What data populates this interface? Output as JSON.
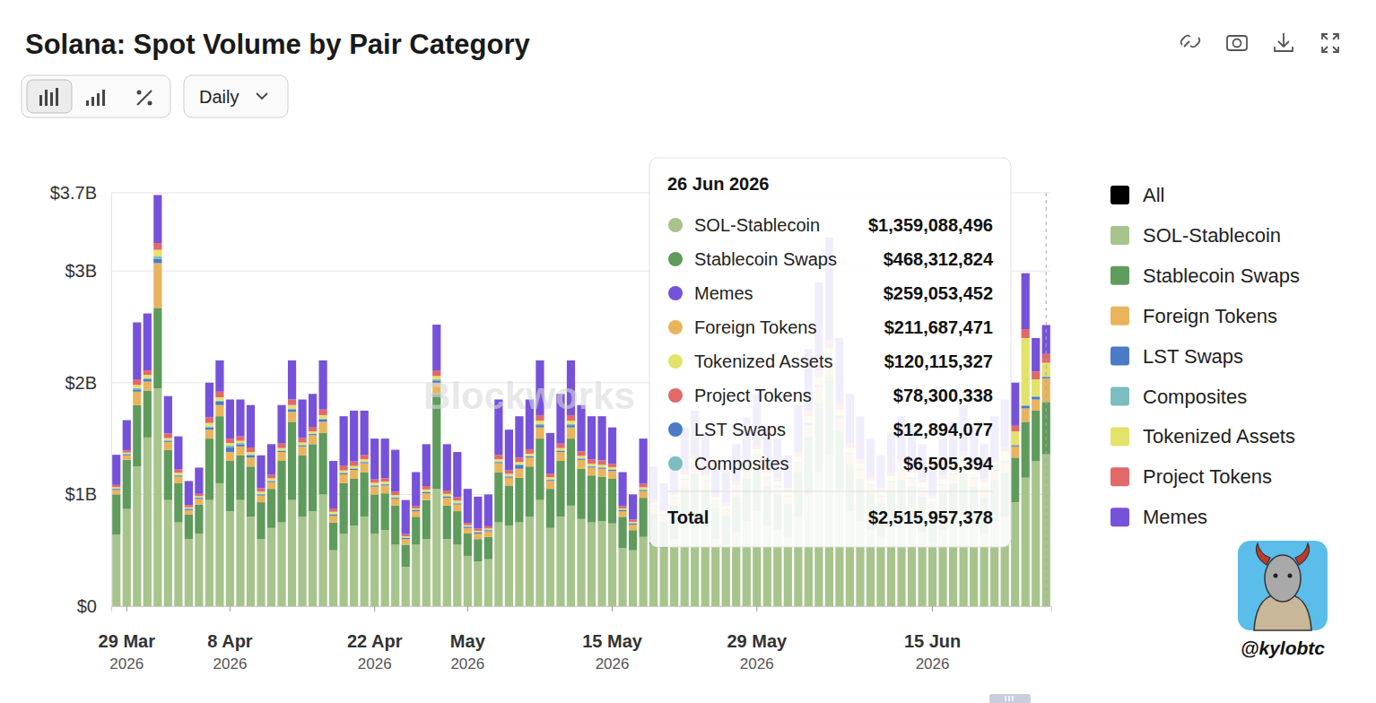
{
  "chart_data": {
    "type": "bar",
    "title": "Solana: Spot Volume by Pair Category",
    "interval": "Daily",
    "watermark": "Blockworks",
    "credit": "@kylobtc",
    "stacked": true,
    "grid": true,
    "legend": "right",
    "all_label": "All",
    "ylim": [
      0,
      3.7
    ],
    "yticks": [
      {
        "value": 0,
        "label": "$0"
      },
      {
        "value": 1,
        "label": "$1B"
      },
      {
        "value": 2,
        "label": "$2B"
      },
      {
        "value": 3,
        "label": "$3B"
      },
      {
        "value": 3.7,
        "label": "$3.7B"
      }
    ],
    "categories": [
      null,
      "29 Mar\n2026",
      null,
      null,
      null,
      null,
      null,
      null,
      null,
      null,
      null,
      "8 Apr\n2026",
      null,
      null,
      null,
      null,
      null,
      null,
      null,
      null,
      null,
      null,
      null,
      null,
      null,
      "22 Apr\n2026",
      null,
      null,
      null,
      null,
      null,
      null,
      null,
      null,
      "May\n2026",
      null,
      null,
      null,
      null,
      null,
      null,
      null,
      null,
      null,
      null,
      null,
      null,
      null,
      "15 May\n2026",
      null,
      null,
      null,
      null,
      null,
      null,
      null,
      null,
      null,
      null,
      null,
      null,
      null,
      "29 May\n2026",
      null,
      null,
      null,
      null,
      null,
      null,
      null,
      null,
      null,
      null,
      null,
      null,
      null,
      null,
      null,
      null,
      "15 Jun\n2026",
      null,
      null,
      null,
      null,
      null,
      null,
      null,
      null,
      null,
      null,
      null
    ],
    "series": [
      {
        "name": "SOL-Stablecoin",
        "color": "#a7c48c",
        "values": [
          0.64,
          0.87,
          1.25,
          1.51,
          1.95,
          0.95,
          0.75,
          0.6,
          0.65,
          0.95,
          1.1,
          0.85,
          0.95,
          0.8,
          0.6,
          0.7,
          0.75,
          0.95,
          0.8,
          0.85,
          1.0,
          0.5,
          0.65,
          0.72,
          0.8,
          0.65,
          0.68,
          0.55,
          0.35,
          0.55,
          0.6,
          1.05,
          0.6,
          0.55,
          0.45,
          0.4,
          0.42,
          0.75,
          0.72,
          0.75,
          0.8,
          0.95,
          0.7,
          0.8,
          0.9,
          0.78,
          0.75,
          0.76,
          0.74,
          0.52,
          0.5,
          0.62,
          0.55,
          0.52,
          0.6,
          0.7,
          0.78,
          0.7,
          0.6,
          0.55,
          0.66,
          0.76,
          0.85,
          0.72,
          0.68,
          0.62,
          0.8,
          1.0,
          1.2,
          1.35,
          1.05,
          0.85,
          0.76,
          0.68,
          0.62,
          0.7,
          0.76,
          0.72,
          0.66,
          0.58,
          0.68,
          0.74,
          0.8,
          0.72,
          0.65,
          0.76,
          0.8,
          0.93,
          1.15,
          1.3,
          1.359088496
        ]
      },
      {
        "name": "Stablecoin Swaps",
        "color": "#5f9b5c",
        "values": [
          0.36,
          0.44,
          0.55,
          0.42,
          0.72,
          0.45,
          0.35,
          0.22,
          0.26,
          0.55,
          0.6,
          0.45,
          0.4,
          0.45,
          0.33,
          0.35,
          0.55,
          0.7,
          0.55,
          0.6,
          0.55,
          0.25,
          0.45,
          0.42,
          0.4,
          0.35,
          0.33,
          0.35,
          0.2,
          0.25,
          0.35,
          0.85,
          0.3,
          0.3,
          0.2,
          0.2,
          0.2,
          0.45,
          0.36,
          0.4,
          0.45,
          0.55,
          0.35,
          0.5,
          0.6,
          0.45,
          0.42,
          0.4,
          0.4,
          0.28,
          0.18,
          0.35,
          0.28,
          0.24,
          0.3,
          0.36,
          0.4,
          0.35,
          0.28,
          0.26,
          0.32,
          0.38,
          0.42,
          0.36,
          0.33,
          0.3,
          0.4,
          0.52,
          0.62,
          0.7,
          0.52,
          0.42,
          0.38,
          0.33,
          0.3,
          0.34,
          0.37,
          0.35,
          0.32,
          0.28,
          0.33,
          0.36,
          0.39,
          0.35,
          0.32,
          0.37,
          0.4,
          0.4,
          0.5,
          0.45,
          0.468312824
        ]
      },
      {
        "name": "Foreign Tokens",
        "color": "#eab45c",
        "values": [
          0.04,
          0.04,
          0.12,
          0.08,
          0.4,
          0.07,
          0.06,
          0.04,
          0.05,
          0.08,
          0.1,
          0.08,
          0.08,
          0.08,
          0.06,
          0.06,
          0.08,
          0.09,
          0.08,
          0.08,
          0.1,
          0.06,
          0.08,
          0.08,
          0.08,
          0.07,
          0.07,
          0.06,
          0.05,
          0.05,
          0.06,
          0.1,
          0.07,
          0.06,
          0.05,
          0.05,
          0.05,
          0.08,
          0.07,
          0.08,
          0.08,
          0.1,
          0.07,
          0.08,
          0.1,
          0.08,
          0.07,
          0.07,
          0.07,
          0.05,
          0.05,
          0.06,
          0.06,
          0.05,
          0.06,
          0.07,
          0.08,
          0.07,
          0.06,
          0.05,
          0.06,
          0.07,
          0.08,
          0.07,
          0.06,
          0.06,
          0.08,
          0.1,
          0.14,
          0.15,
          0.11,
          0.09,
          0.08,
          0.07,
          0.06,
          0.07,
          0.08,
          0.07,
          0.07,
          0.06,
          0.07,
          0.08,
          0.08,
          0.07,
          0.07,
          0.08,
          0.09,
          0.1,
          0.12,
          0.1,
          0.211687471
        ]
      },
      {
        "name": "LST Swaps",
        "color": "#4b7bc6",
        "values": [
          0.01,
          0.01,
          0.02,
          0.02,
          0.04,
          0.01,
          0.01,
          0.01,
          0.01,
          0.02,
          0.03,
          0.04,
          0.02,
          0.02,
          0.01,
          0.01,
          0.01,
          0.02,
          0.01,
          0.01,
          0.02,
          0.01,
          0.01,
          0.01,
          0.01,
          0.01,
          0.01,
          0.01,
          0.01,
          0.01,
          0.01,
          0.02,
          0.01,
          0.01,
          0.01,
          0.01,
          0.01,
          0.01,
          0.01,
          0.03,
          0.01,
          0.02,
          0.01,
          0.01,
          0.02,
          0.01,
          0.01,
          0.01,
          0.01,
          0.01,
          0.01,
          0.01,
          0.01,
          0.01,
          0.01,
          0.01,
          0.01,
          0.01,
          0.01,
          0.01,
          0.01,
          0.01,
          0.01,
          0.01,
          0.01,
          0.01,
          0.01,
          0.02,
          0.02,
          0.03,
          0.02,
          0.01,
          0.01,
          0.01,
          0.01,
          0.01,
          0.01,
          0.01,
          0.01,
          0.01,
          0.01,
          0.01,
          0.01,
          0.01,
          0.01,
          0.01,
          0.01,
          0.01,
          0.02,
          0.02,
          0.012894077
        ]
      },
      {
        "name": "Composites",
        "color": "#7cbdbf",
        "values": [
          0.005,
          0.005,
          0.01,
          0.01,
          0.02,
          0.005,
          0.005,
          0.005,
          0.005,
          0.01,
          0.01,
          0.02,
          0.01,
          0.01,
          0.005,
          0.005,
          0.005,
          0.01,
          0.005,
          0.005,
          0.01,
          0.005,
          0.005,
          0.005,
          0.005,
          0.005,
          0.005,
          0.005,
          0.005,
          0.005,
          0.005,
          0.01,
          0.005,
          0.005,
          0.005,
          0.005,
          0.005,
          0.005,
          0.005,
          0.01,
          0.005,
          0.01,
          0.005,
          0.005,
          0.01,
          0.005,
          0.005,
          0.005,
          0.005,
          0.005,
          0.005,
          0.005,
          0.005,
          0.005,
          0.005,
          0.005,
          0.005,
          0.005,
          0.005,
          0.005,
          0.005,
          0.005,
          0.005,
          0.005,
          0.005,
          0.005,
          0.005,
          0.01,
          0.01,
          0.01,
          0.01,
          0.005,
          0.005,
          0.005,
          0.005,
          0.005,
          0.005,
          0.005,
          0.005,
          0.005,
          0.005,
          0.005,
          0.005,
          0.005,
          0.005,
          0.005,
          0.005,
          0.005,
          0.01,
          0.01,
          0.006505394
        ]
      },
      {
        "name": "Tokenized Assets",
        "color": "#e3e26a",
        "values": [
          0.01,
          0.01,
          0.03,
          0.03,
          0.06,
          0.02,
          0.02,
          0.01,
          0.01,
          0.03,
          0.03,
          0.02,
          0.02,
          0.02,
          0.02,
          0.02,
          0.02,
          0.03,
          0.02,
          0.02,
          0.03,
          0.02,
          0.02,
          0.02,
          0.02,
          0.02,
          0.02,
          0.02,
          0.01,
          0.01,
          0.02,
          0.03,
          0.02,
          0.02,
          0.01,
          0.01,
          0.01,
          0.02,
          0.02,
          0.02,
          0.02,
          0.03,
          0.02,
          0.02,
          0.03,
          0.02,
          0.02,
          0.02,
          0.02,
          0.01,
          0.01,
          0.02,
          0.02,
          0.02,
          0.02,
          0.03,
          0.03,
          0.03,
          0.02,
          0.02,
          0.03,
          0.03,
          0.04,
          0.03,
          0.03,
          0.03,
          0.04,
          0.05,
          0.06,
          0.07,
          0.05,
          0.04,
          0.04,
          0.03,
          0.03,
          0.04,
          0.04,
          0.04,
          0.04,
          0.03,
          0.04,
          0.05,
          0.06,
          0.05,
          0.05,
          0.06,
          0.08,
          0.12,
          0.6,
          0.15,
          0.120115327
        ]
      },
      {
        "name": "Project Tokens",
        "color": "#e2686a",
        "values": [
          0.02,
          0.02,
          0.05,
          0.04,
          0.06,
          0.04,
          0.03,
          0.02,
          0.02,
          0.05,
          0.05,
          0.04,
          0.04,
          0.04,
          0.03,
          0.03,
          0.04,
          0.05,
          0.04,
          0.04,
          0.05,
          0.03,
          0.04,
          0.04,
          0.04,
          0.03,
          0.03,
          0.03,
          0.02,
          0.02,
          0.03,
          0.05,
          0.03,
          0.03,
          0.02,
          0.02,
          0.02,
          0.04,
          0.03,
          0.04,
          0.04,
          0.05,
          0.03,
          0.04,
          0.05,
          0.04,
          0.04,
          0.04,
          0.03,
          0.02,
          0.02,
          0.03,
          0.03,
          0.02,
          0.03,
          0.04,
          0.04,
          0.03,
          0.03,
          0.03,
          0.03,
          0.04,
          0.04,
          0.04,
          0.03,
          0.03,
          0.04,
          0.05,
          0.06,
          0.07,
          0.05,
          0.04,
          0.04,
          0.03,
          0.03,
          0.03,
          0.04,
          0.04,
          0.03,
          0.03,
          0.03,
          0.04,
          0.04,
          0.04,
          0.03,
          0.04,
          0.04,
          0.05,
          0.08,
          0.07,
          0.078300338
        ]
      },
      {
        "name": "Memes",
        "color": "#7652db",
        "values": [
          0.27,
          0.27,
          0.51,
          0.51,
          0.43,
          0.335,
          0.295,
          0.215,
          0.235,
          0.31,
          0.28,
          0.35,
          0.33,
          0.38,
          0.295,
          0.275,
          0.345,
          0.35,
          0.345,
          0.295,
          0.44,
          0.425,
          0.445,
          0.455,
          0.395,
          0.365,
          0.355,
          0.375,
          0.305,
          0.305,
          0.375,
          0.41,
          0.415,
          0.405,
          0.305,
          0.285,
          0.285,
          0.495,
          0.365,
          0.37,
          0.445,
          0.49,
          0.365,
          0.445,
          0.49,
          0.415,
          0.385,
          0.395,
          0.325,
          0.305,
          0.225,
          0.405,
          0.295,
          0.235,
          0.325,
          0.385,
          0.405,
          0.355,
          0.295,
          0.275,
          0.335,
          0.395,
          0.455,
          0.365,
          0.355,
          0.295,
          0.425,
          0.55,
          0.79,
          0.92,
          0.59,
          0.445,
          0.385,
          0.345,
          0.295,
          0.355,
          0.395,
          0.365,
          0.315,
          0.305,
          0.335,
          0.365,
          0.415,
          0.355,
          0.315,
          0.375,
          0.425,
          0.385,
          0.5,
          0.3,
          0.259053452
        ]
      }
    ],
    "tooltip": {
      "date": "26 Jun 2026",
      "rows": [
        {
          "name": "SOL-Stablecoin",
          "label": "$1,359,088,496"
        },
        {
          "name": "Stablecoin Swaps",
          "label": "$468,312,824"
        },
        {
          "name": "Memes",
          "label": "$259,053,452"
        },
        {
          "name": "Foreign Tokens",
          "label": "$211,687,471"
        },
        {
          "name": "Tokenized Assets",
          "label": "$120,115,327"
        },
        {
          "name": "Project Tokens",
          "label": "$78,300,338"
        },
        {
          "name": "LST Swaps",
          "label": "$12,894,077"
        },
        {
          "name": "Composites",
          "label": "$6,505,394"
        }
      ],
      "total_name": "Total",
      "total_label": "$2,515,957,378"
    }
  }
}
